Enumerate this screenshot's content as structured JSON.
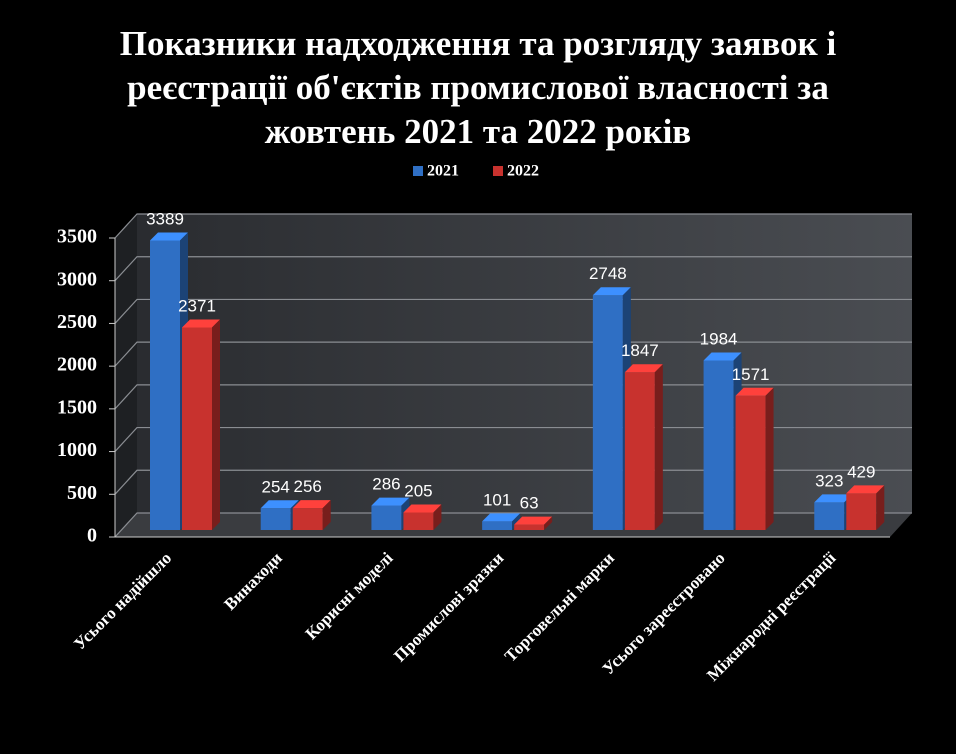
{
  "chart_data": {
    "type": "bar3d",
    "title": "Показники надходження та розгляду заявок і реєстрації об'єктів промислової власності за жовтень 2021 та 2022 років",
    "categories": [
      "Усього надійшло",
      "Винаходи",
      "Корисні моделі",
      "Промислові зразки",
      "Торговельні марки",
      "Усього зареєстровано",
      "Міжнародні реєстрації"
    ],
    "series": [
      {
        "name": "2021",
        "color": "#2f6fc4",
        "values": [
          3389,
          254,
          286,
          101,
          2748,
          1984,
          323
        ]
      },
      {
        "name": "2022",
        "color": "#c8322e",
        "values": [
          2371,
          256,
          205,
          63,
          1847,
          1571,
          429
        ]
      }
    ],
    "ylim": [
      0,
      3500
    ],
    "yticks": [
      0,
      500,
      1000,
      1500,
      2000,
      2500,
      3000,
      3500
    ],
    "grid": true,
    "legend": "top"
  }
}
